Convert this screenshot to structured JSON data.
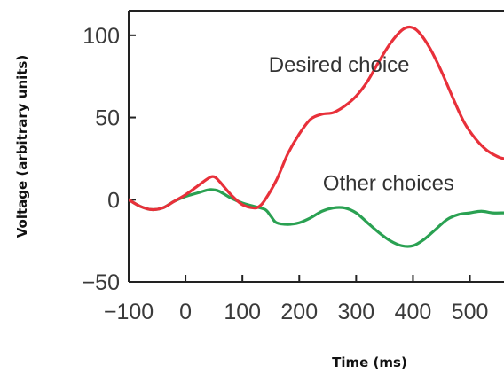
{
  "chart_data": {
    "type": "line",
    "title": "",
    "xlabel": "Time (ms)",
    "ylabel": "Voltage (arbitrary units)",
    "xlim": [
      -100,
      560
    ],
    "ylim": [
      -50,
      115
    ],
    "xticks": [
      -100,
      0,
      100,
      200,
      300,
      400,
      500
    ],
    "yticks": [
      100,
      50,
      0,
      -50
    ],
    "xtick_labels": [
      "−100",
      "0",
      "100",
      "200",
      "300",
      "400",
      "500"
    ],
    "ytick_labels": [
      "100",
      "50",
      "0",
      "−50"
    ],
    "grid": false,
    "legend": "none",
    "series": [
      {
        "color": "#e8303a",
        "x": [
          -100,
          -80,
          -60,
          -40,
          -20,
          0,
          20,
          40,
          50,
          60,
          80,
          100,
          120,
          130,
          140,
          160,
          180,
          200,
          220,
          240,
          260,
          280,
          300,
          320,
          340,
          360,
          380,
          395,
          410,
          430,
          450,
          470,
          490,
          510,
          530,
          550,
          560
        ],
        "y": [
          0,
          -4,
          -6,
          -5,
          -1,
          3,
          8,
          13,
          14,
          11,
          3,
          -3,
          -5,
          -4,
          0,
          12,
          28,
          40,
          49,
          52,
          53,
          57,
          63,
          72,
          84,
          95,
          103,
          105,
          102,
          92,
          78,
          62,
          47,
          37,
          30,
          26,
          25
        ]
      },
      {
        "color": "#2aa152",
        "x": [
          -100,
          -80,
          -60,
          -40,
          -20,
          0,
          20,
          40,
          50,
          60,
          80,
          100,
          120,
          140,
          150,
          160,
          180,
          200,
          220,
          240,
          260,
          280,
          300,
          320,
          340,
          360,
          380,
          400,
          420,
          440,
          460,
          480,
          500,
          520,
          540,
          560
        ],
        "y": [
          0,
          -4,
          -6,
          -5,
          -1,
          2,
          4,
          6,
          6,
          5,
          1,
          -2,
          -4,
          -6,
          -10,
          -14,
          -15,
          -14,
          -11,
          -7,
          -5,
          -5,
          -8,
          -14,
          -20,
          -25,
          -28,
          -28,
          -24,
          -18,
          -12,
          -9,
          -8,
          -7,
          -8,
          -8
        ]
      }
    ],
    "annotations": [
      {
        "text": "Desired choice",
        "x": 270,
        "y": 82
      },
      {
        "text": "Other choices",
        "x": 357,
        "y": 10
      }
    ]
  }
}
